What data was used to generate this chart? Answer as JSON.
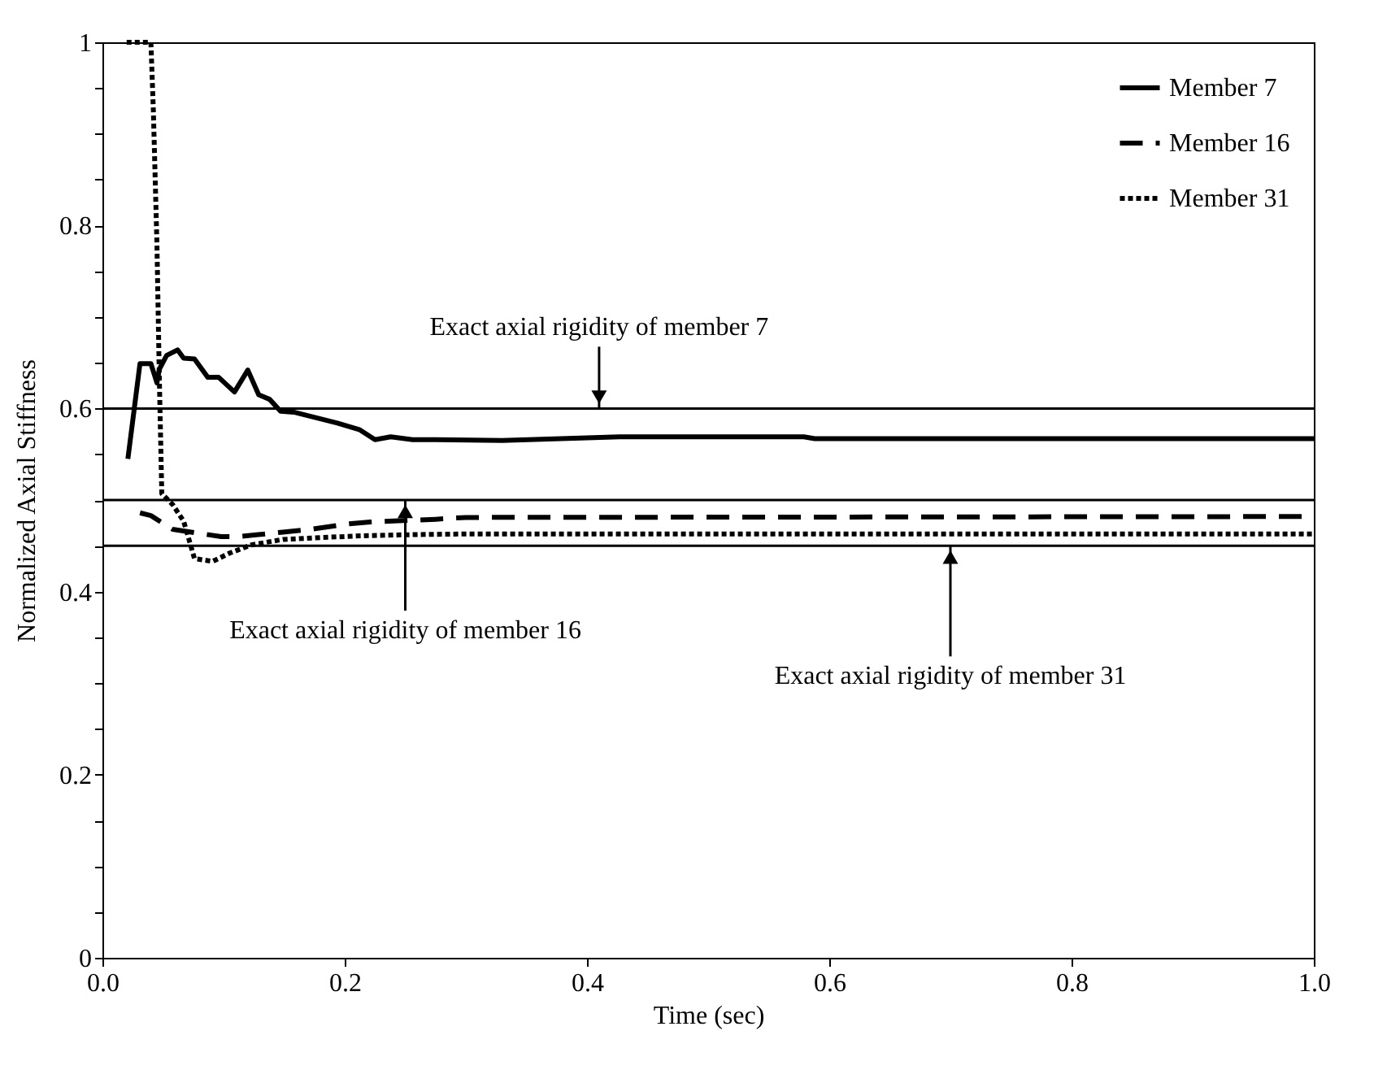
{
  "chart_data": {
    "type": "line",
    "xlabel": "Time (sec)",
    "ylabel": "Normalized Axial Stiffness",
    "xlim": [
      0,
      1
    ],
    "ylim": [
      0,
      1
    ],
    "xticks": [
      {
        "value": 0,
        "label": "0.0"
      },
      {
        "value": 0.2,
        "label": "0.2"
      },
      {
        "value": 0.4,
        "label": "0.4"
      },
      {
        "value": 0.6,
        "label": "0.6"
      },
      {
        "value": 0.8,
        "label": "0.8"
      },
      {
        "value": 1,
        "label": "1.0"
      }
    ],
    "yticks": [
      0,
      {
        "value": 0.05,
        "label": null
      },
      {
        "value": 0.1,
        "label": null
      },
      {
        "value": 0.15,
        "label": null
      },
      0.2,
      {
        "value": 0.25,
        "label": null
      },
      {
        "value": 0.3,
        "label": null
      },
      {
        "value": 0.35,
        "label": null
      },
      0.4,
      {
        "value": 0.45,
        "label": null
      },
      {
        "value": 0.5,
        "label": null
      },
      {
        "value": 0.55,
        "label": null
      },
      0.6,
      {
        "value": 0.65,
        "label": null
      },
      {
        "value": 0.7,
        "label": null
      },
      {
        "value": 0.75,
        "label": null
      },
      0.8,
      {
        "value": 0.85,
        "label": null
      },
      {
        "value": 0.9,
        "label": null
      },
      {
        "value": 0.95,
        "label": null
      },
      1
    ],
    "grid": false,
    "legend": "top right",
    "marker": "none",
    "series": [
      {
        "name": "Member 7",
        "color": "#000000",
        "line_style": "solid",
        "x": [
          0.021,
          0.031,
          0.04,
          0.045,
          0.047,
          0.053,
          0.062,
          0.067,
          0.076,
          0.087,
          0.096,
          0.109,
          0.12,
          0.129,
          0.138,
          0.147,
          0.158,
          0.176,
          0.194,
          0.212,
          0.225,
          0.238,
          0.256,
          0.275,
          0.33,
          0.427,
          0.579,
          0.588,
          1.0
        ],
        "values": [
          0.545,
          0.649,
          0.649,
          0.628,
          0.643,
          0.658,
          0.664,
          0.655,
          0.654,
          0.634,
          0.634,
          0.618,
          0.642,
          0.615,
          0.61,
          0.597,
          0.596,
          0.59,
          0.584,
          0.577,
          0.566,
          0.569,
          0.566,
          0.566,
          0.565,
          0.569,
          0.569,
          0.567,
          0.567
        ]
      },
      {
        "name": "Member 16",
        "color": "#000000",
        "line_style": "dashed",
        "x": [
          0.031,
          0.04,
          0.058,
          0.098,
          0.111,
          0.127,
          0.149,
          0.172,
          0.203,
          0.221,
          0.275,
          0.3,
          1.0
        ],
        "values": [
          0.486,
          0.483,
          0.468,
          0.46,
          0.46,
          0.462,
          0.465,
          0.468,
          0.474,
          0.476,
          0.479,
          0.481,
          0.482
        ]
      },
      {
        "name": "Member 31",
        "color": "#000000",
        "line_style": "dotted",
        "x": [
          0.02,
          0.04,
          0.042,
          0.045,
          0.047,
          0.049,
          0.058,
          0.067,
          0.071,
          0.076,
          0.091,
          0.105,
          0.123,
          0.149,
          0.18,
          0.216,
          0.247,
          0.3,
          1.0
        ],
        "values": [
          1.0,
          1.0,
          0.927,
          0.779,
          0.631,
          0.507,
          0.495,
          0.477,
          0.459,
          0.436,
          0.433,
          0.442,
          0.451,
          0.457,
          0.459,
          0.461,
          0.462,
          0.463,
          0.463
        ]
      }
    ],
    "ref_lines": [
      {
        "axis": "y",
        "value": 0.6,
        "color": "#000000"
      },
      {
        "axis": "y",
        "value": 0.5,
        "color": "#000000"
      },
      {
        "axis": "y",
        "value": 0.45,
        "color": "#000000"
      }
    ],
    "annotations": [
      {
        "text": "Exact axial rigidity of member 7",
        "x": 0.41,
        "y": 0.6
      },
      {
        "text": "Exact axial rigidity of member 16",
        "x": 0.25,
        "y": 0.5
      },
      {
        "text": "Exact axial rigidity of member 31",
        "x": 0.7,
        "y": 0.45
      }
    ]
  }
}
